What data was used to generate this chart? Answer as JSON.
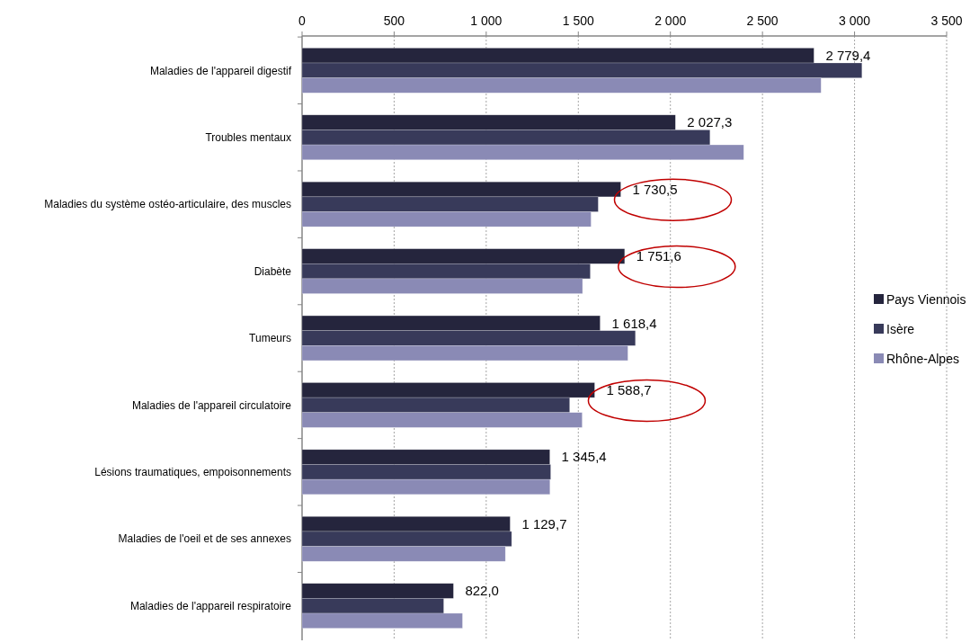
{
  "chart_data": {
    "type": "bar",
    "orientation": "horizontal",
    "categories": [
      "Maladies de l'appareil digestif",
      "Troubles mentaux",
      "Maladies du système ostéo-articulaire, des muscles",
      "Diabète",
      "Tumeurs",
      "Maladies de l'appareil circulatoire",
      "Lésions traumatiques, empoisonnements",
      "Maladies de l'oeil et de ses annexes",
      "Maladies de l'appareil respiratoire"
    ],
    "series": [
      {
        "name": "Pays Viennois",
        "color": "#25253d",
        "values": [
          2779.4,
          2027.3,
          1730.5,
          1751.6,
          1618.4,
          1588.7,
          1345.4,
          1129.7,
          822.0
        ],
        "value_labels": [
          "2 779,4",
          "2 027,3",
          "1 730,5",
          "1 751,6",
          "1 618,4",
          "1 588,7",
          "1 345,4",
          "1 129,7",
          "822,0"
        ]
      },
      {
        "name": "Isère",
        "color": "#383a5a",
        "values": [
          3040,
          2215,
          1608,
          1565,
          1810,
          1453,
          1350,
          1138,
          769
        ]
      },
      {
        "name": "Rhône-Alpes",
        "color": "#8a8ab5",
        "values": [
          2818,
          2398,
          1569,
          1523,
          1769,
          1521,
          1346,
          1104,
          871
        ]
      }
    ],
    "xlim": [
      0,
      3500
    ],
    "xticks": [
      0,
      500,
      {
        "value": 1000,
        "label": "1 000"
      },
      {
        "value": 1500,
        "label": "1 500"
      },
      {
        "value": 2000,
        "label": "2 000"
      },
      {
        "value": 2500,
        "label": "2 500"
      },
      {
        "value": 3000,
        "label": "3 000"
      },
      {
        "value": 3500,
        "label": "3 500"
      }
    ],
    "grid": "x",
    "legend": "right"
  }
}
